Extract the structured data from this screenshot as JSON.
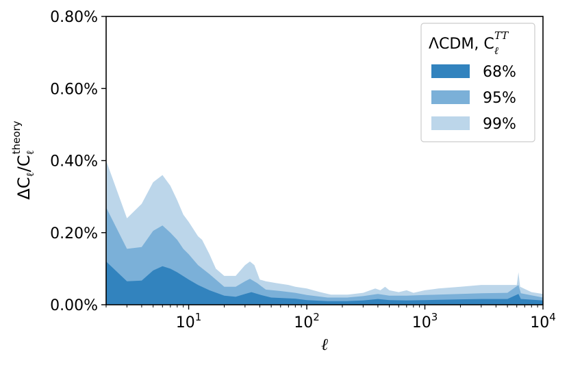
{
  "chart_data": {
    "type": "area",
    "xscale": "log",
    "xlim": [
      2,
      10000
    ],
    "ylim": [
      0,
      0.8
    ],
    "xlabel": "ℓ",
    "ylabel": {
      "delta_c": "ΔC",
      "ell_sub": "ℓ",
      "slash": "/",
      "c": "C",
      "ell_sub2": "ℓ",
      "theory_sup": "theory"
    },
    "yticks": [
      {
        "value": 0.0,
        "label": "0.00%"
      },
      {
        "value": 0.2,
        "label": "0.20%"
      },
      {
        "value": 0.4,
        "label": "0.40%"
      },
      {
        "value": 0.6,
        "label": "0.60%"
      },
      {
        "value": 0.8,
        "label": "0.80%"
      }
    ],
    "xticks": [
      {
        "value": 10,
        "base": "10",
        "exp": "1"
      },
      {
        "value": 100,
        "base": "10",
        "exp": "2"
      },
      {
        "value": 1000,
        "base": "10",
        "exp": "3"
      },
      {
        "value": 10000,
        "base": "10",
        "exp": "4"
      }
    ],
    "legend": {
      "title_main": "ΛCDM, C",
      "title_sub": "ℓ",
      "title_sup": "TT",
      "placement": "top-right"
    },
    "series": [
      {
        "name": "99%",
        "color": "#bcd6ea",
        "points": [
          [
            2,
            0.4
          ],
          [
            3,
            0.24
          ],
          [
            4,
            0.28
          ],
          [
            5,
            0.34
          ],
          [
            6,
            0.36
          ],
          [
            7,
            0.33
          ],
          [
            8,
            0.29
          ],
          [
            9,
            0.25
          ],
          [
            10,
            0.23
          ],
          [
            12,
            0.19
          ],
          [
            13,
            0.18
          ],
          [
            15,
            0.14
          ],
          [
            17,
            0.1
          ],
          [
            20,
            0.08
          ],
          [
            25,
            0.08
          ],
          [
            30,
            0.11
          ],
          [
            33,
            0.12
          ],
          [
            36,
            0.11
          ],
          [
            40,
            0.07
          ],
          [
            45,
            0.065
          ],
          [
            55,
            0.06
          ],
          [
            70,
            0.055
          ],
          [
            80,
            0.05
          ],
          [
            100,
            0.045
          ],
          [
            130,
            0.035
          ],
          [
            160,
            0.028
          ],
          [
            220,
            0.028
          ],
          [
            300,
            0.033
          ],
          [
            380,
            0.045
          ],
          [
            420,
            0.04
          ],
          [
            460,
            0.05
          ],
          [
            500,
            0.04
          ],
          [
            600,
            0.035
          ],
          [
            700,
            0.04
          ],
          [
            800,
            0.033
          ],
          [
            1000,
            0.04
          ],
          [
            1300,
            0.045
          ],
          [
            2000,
            0.05
          ],
          [
            3000,
            0.055
          ],
          [
            4500,
            0.055
          ],
          [
            6000,
            0.055
          ],
          [
            6200,
            0.09
          ],
          [
            6400,
            0.05
          ],
          [
            8000,
            0.035
          ],
          [
            10000,
            0.03
          ]
        ]
      },
      {
        "name": "95%",
        "color": "#7bb0d8",
        "points": [
          [
            2,
            0.27
          ],
          [
            3,
            0.155
          ],
          [
            4,
            0.16
          ],
          [
            5,
            0.205
          ],
          [
            6,
            0.22
          ],
          [
            7,
            0.2
          ],
          [
            8,
            0.18
          ],
          [
            9,
            0.155
          ],
          [
            10,
            0.14
          ],
          [
            12,
            0.11
          ],
          [
            15,
            0.085
          ],
          [
            20,
            0.05
          ],
          [
            25,
            0.05
          ],
          [
            30,
            0.065
          ],
          [
            33,
            0.072
          ],
          [
            38,
            0.06
          ],
          [
            45,
            0.042
          ],
          [
            60,
            0.038
          ],
          [
            80,
            0.033
          ],
          [
            100,
            0.027
          ],
          [
            150,
            0.02
          ],
          [
            220,
            0.02
          ],
          [
            300,
            0.024
          ],
          [
            400,
            0.03
          ],
          [
            500,
            0.025
          ],
          [
            700,
            0.025
          ],
          [
            1000,
            0.027
          ],
          [
            2000,
            0.03
          ],
          [
            3000,
            0.032
          ],
          [
            5000,
            0.033
          ],
          [
            6200,
            0.055
          ],
          [
            6500,
            0.032
          ],
          [
            10000,
            0.02
          ]
        ]
      },
      {
        "name": "68%",
        "color": "#3283be",
        "points": [
          [
            2,
            0.12
          ],
          [
            3,
            0.065
          ],
          [
            4,
            0.067
          ],
          [
            5,
            0.095
          ],
          [
            6,
            0.107
          ],
          [
            7,
            0.1
          ],
          [
            8,
            0.09
          ],
          [
            10,
            0.07
          ],
          [
            12,
            0.055
          ],
          [
            15,
            0.04
          ],
          [
            20,
            0.025
          ],
          [
            25,
            0.022
          ],
          [
            30,
            0.03
          ],
          [
            34,
            0.035
          ],
          [
            40,
            0.028
          ],
          [
            50,
            0.02
          ],
          [
            80,
            0.017
          ],
          [
            100,
            0.013
          ],
          [
            150,
            0.01
          ],
          [
            220,
            0.01
          ],
          [
            300,
            0.012
          ],
          [
            400,
            0.016
          ],
          [
            500,
            0.013
          ],
          [
            700,
            0.012
          ],
          [
            1000,
            0.013
          ],
          [
            2000,
            0.015
          ],
          [
            3000,
            0.016
          ],
          [
            5000,
            0.016
          ],
          [
            6200,
            0.03
          ],
          [
            6500,
            0.016
          ],
          [
            10000,
            0.012
          ]
        ]
      }
    ],
    "legend_items": [
      {
        "label": "68%",
        "color": "#3283be"
      },
      {
        "label": "95%",
        "color": "#7bb0d8"
      },
      {
        "label": "99%",
        "color": "#bcd6ea"
      }
    ]
  }
}
